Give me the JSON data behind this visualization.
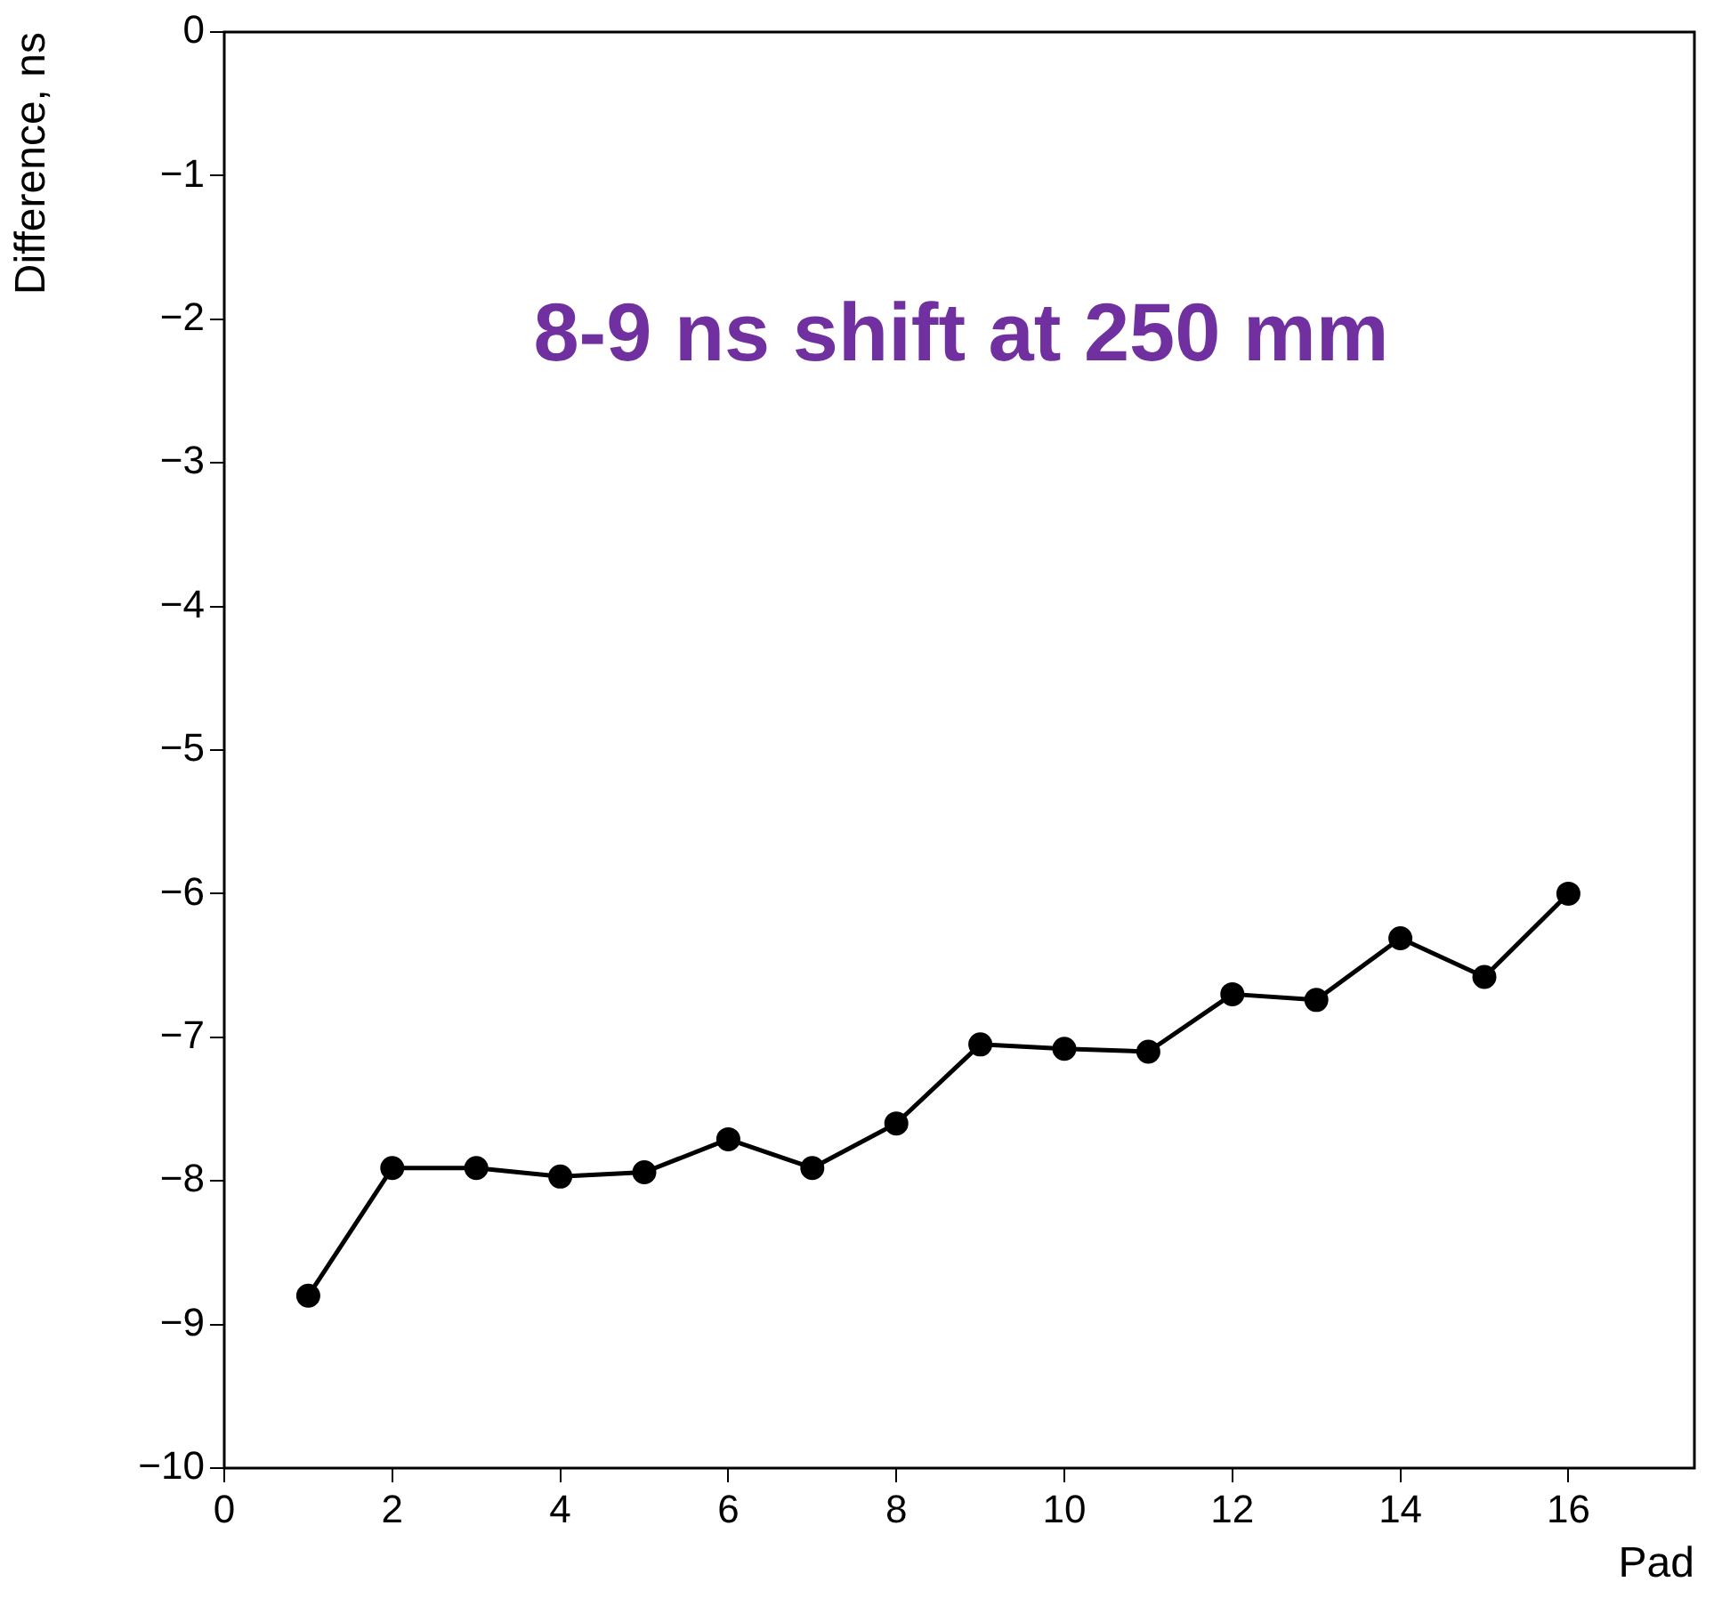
{
  "chart_data": {
    "type": "line",
    "xlabel": "Pad",
    "ylabel": "Difference, ns",
    "x": [
      1,
      2,
      3,
      4,
      5,
      6,
      7,
      8,
      9,
      10,
      11,
      12,
      13,
      14,
      15,
      16
    ],
    "values": [
      -8.8,
      -7.91,
      -7.91,
      -7.97,
      -7.94,
      -7.71,
      -7.91,
      -7.6,
      -7.05,
      -7.08,
      -7.1,
      -6.7,
      -6.74,
      -6.31,
      -6.58,
      -6.0
    ],
    "color": "#000000",
    "marker": "circle",
    "line_style": "solid",
    "grid": false,
    "legend": false,
    "xlim": [
      0,
      17.5
    ],
    "xticks": [
      0,
      2,
      4,
      6,
      8,
      10,
      12,
      14,
      16
    ],
    "ylim": [
      -10,
      0
    ],
    "yticks": [
      -10,
      -9,
      -8,
      -7,
      -6,
      -5,
      -4,
      -3,
      -2,
      -1,
      0
    ],
    "annotations": [
      "8-9 ns shift at 250 mm"
    ]
  }
}
